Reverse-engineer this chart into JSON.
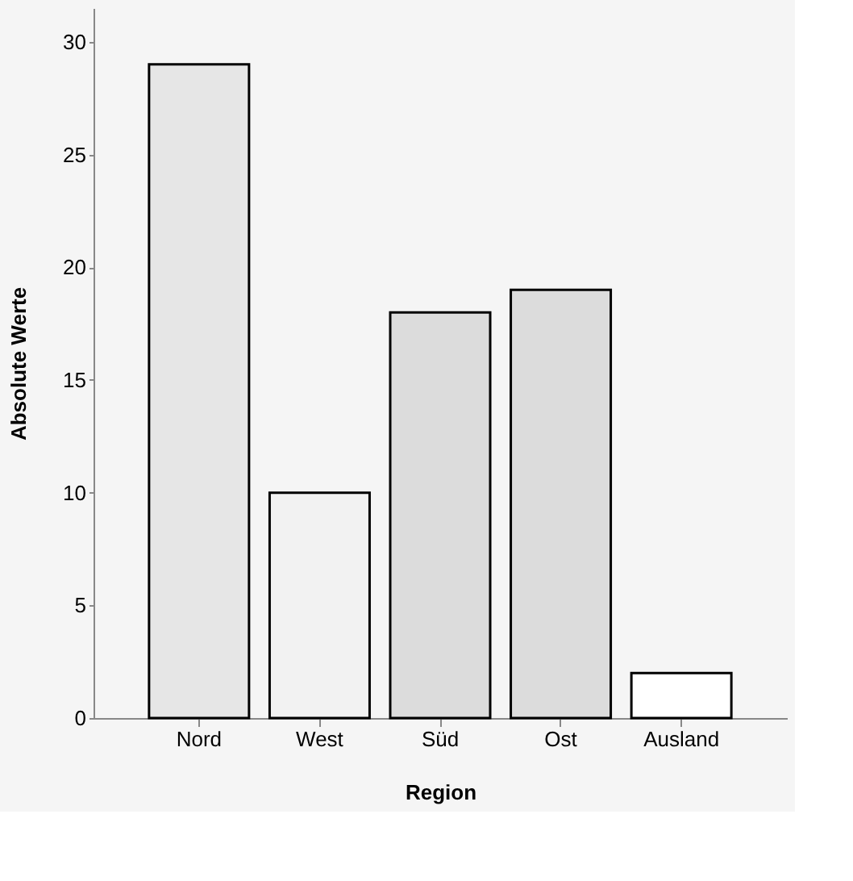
{
  "chart_data": {
    "type": "bar",
    "xlabel": "Region",
    "ylabel": "Absolute Werte",
    "categories": [
      "Nord",
      "West",
      "Süd",
      "Ost",
      "Ausland"
    ],
    "values": [
      29,
      10,
      18,
      19,
      2
    ],
    "colors": [
      "#e6e6e6",
      "#f2f2f2",
      "#dcdcdc",
      "#dcdcdc",
      "#ffffff"
    ],
    "ylim": [
      0,
      31.5
    ],
    "yticks": [
      0,
      5,
      10,
      15,
      20,
      25,
      30
    ],
    "grid": false
  }
}
